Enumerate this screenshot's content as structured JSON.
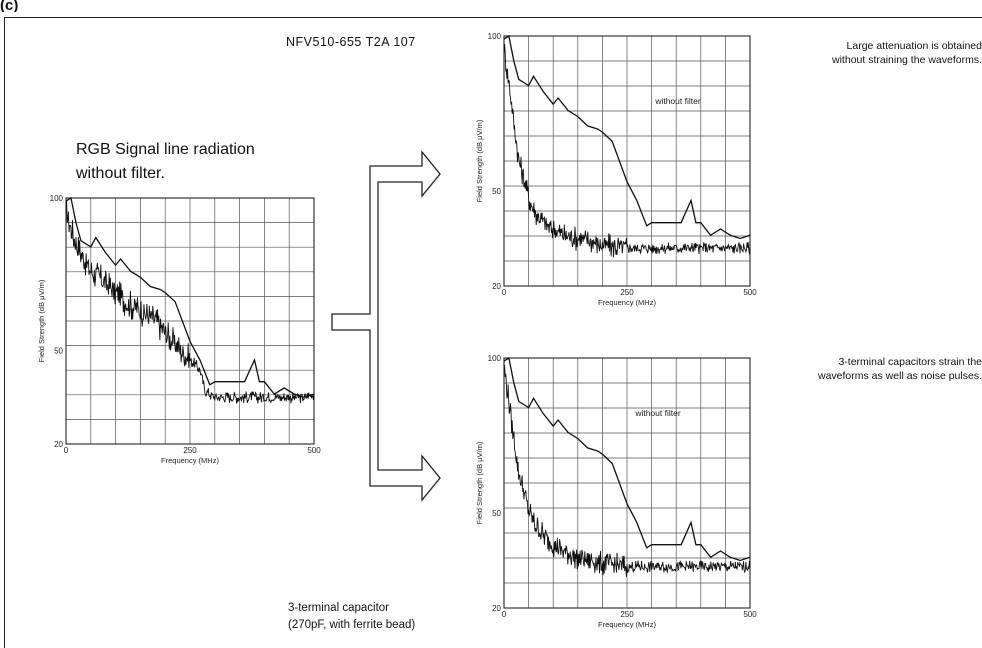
{
  "header": {
    "cut_label": "(c)"
  },
  "part_number": "NFV510-655 T2A 107",
  "rgb_title": [
    "RGB Signal line radiation",
    "without filter."
  ],
  "capacitor_caption": [
    "3-terminal capacitor",
    "(270pF, with ferrite bead)"
  ],
  "note_top": [
    "Large attenuation is obtained",
    "without straining the waveforms."
  ],
  "note_bottom": [
    "3-terminal capacitors strain the",
    "waveforms as well as noise pulses."
  ],
  "colors": {
    "ink": "#111111",
    "grid": "#555555",
    "background": "#ffffff"
  },
  "chart_data": [
    {
      "type": "line",
      "id": "without-filter",
      "xlabel": "Frequency (MHz)",
      "ylabel": "Field Strength (dB μV/m)",
      "xlim": [
        0,
        500
      ],
      "ylim": [
        20,
        100
      ],
      "x_ticks": [
        0,
        250,
        500
      ],
      "y_ticks": [
        20,
        50,
        100
      ],
      "grid": true,
      "series": [
        {
          "role": "envelope",
          "x": [
            0,
            10,
            20,
            30,
            40,
            50,
            60,
            80,
            100,
            110,
            130,
            150,
            170,
            190,
            200,
            220,
            250,
            270,
            290,
            300,
            330,
            360,
            380,
            390,
            400,
            420,
            440,
            460,
            480,
            500
          ],
          "y": [
            99,
            100,
            92,
            86,
            85,
            84,
            87,
            82,
            78,
            80,
            76,
            74,
            71,
            70,
            69,
            66,
            53,
            47,
            39,
            40,
            40,
            40,
            47,
            40,
            40,
            36,
            38,
            36,
            35,
            36
          ]
        },
        {
          "role": "noise",
          "x": [
            0,
            10,
            20,
            30,
            40,
            50,
            60,
            80,
            100,
            120,
            150,
            180,
            200,
            220,
            250,
            270,
            280,
            300,
            330,
            360,
            400,
            440,
            480,
            500
          ],
          "y": [
            96,
            90,
            85,
            82,
            79,
            76,
            75,
            72,
            69,
            66,
            63,
            60,
            56,
            52,
            47,
            44,
            37,
            35,
            35,
            35,
            35,
            35,
            35,
            36
          ]
        }
      ]
    },
    {
      "type": "line",
      "id": "nfv-filter",
      "xlabel": "Frequency (MHz)",
      "ylabel": "Field Strength (dB μV/m)",
      "xlim": [
        0,
        500
      ],
      "ylim": [
        20,
        100
      ],
      "x_ticks": [
        0,
        250,
        500
      ],
      "y_ticks": [
        20,
        50,
        100
      ],
      "grid": true,
      "annotation": "without filter",
      "series": [
        {
          "role": "envelope",
          "x": [
            0,
            10,
            20,
            30,
            40,
            50,
            60,
            80,
            100,
            110,
            130,
            150,
            170,
            190,
            200,
            220,
            250,
            270,
            290,
            300,
            330,
            360,
            380,
            390,
            400,
            420,
            440,
            460,
            480,
            500
          ],
          "y": [
            99,
            100,
            92,
            86,
            85,
            84,
            87,
            82,
            78,
            80,
            76,
            74,
            71,
            70,
            69,
            66,
            53,
            47,
            39,
            40,
            40,
            40,
            47,
            40,
            40,
            36,
            38,
            36,
            35,
            36
          ]
        },
        {
          "role": "noise",
          "x": [
            0,
            10,
            20,
            30,
            40,
            50,
            60,
            80,
            100,
            120,
            150,
            180,
            200,
            250,
            300,
            350,
            400,
            450,
            500
          ],
          "y": [
            96,
            85,
            72,
            60,
            54,
            48,
            44,
            40,
            38,
            36,
            35,
            34,
            33,
            32,
            32,
            32,
            32,
            32,
            32
          ]
        }
      ]
    },
    {
      "type": "line",
      "id": "three-terminal-capacitor",
      "xlabel": "Frequency (MHz)",
      "ylabel": "Field Strength (dB μV/m)",
      "xlim": [
        0,
        500
      ],
      "ylim": [
        20,
        100
      ],
      "x_ticks": [
        0,
        250,
        500
      ],
      "y_ticks": [
        20,
        50,
        100
      ],
      "grid": true,
      "annotation": "without filter",
      "series": [
        {
          "role": "envelope",
          "x": [
            0,
            10,
            20,
            30,
            40,
            50,
            60,
            80,
            100,
            110,
            130,
            150,
            170,
            190,
            200,
            220,
            250,
            270,
            290,
            300,
            330,
            360,
            380,
            390,
            400,
            420,
            440,
            460,
            480,
            500
          ],
          "y": [
            99,
            100,
            92,
            86,
            85,
            84,
            87,
            82,
            78,
            80,
            76,
            74,
            71,
            70,
            69,
            66,
            53,
            47,
            39,
            40,
            40,
            40,
            47,
            40,
            40,
            36,
            38,
            36,
            35,
            36
          ]
        },
        {
          "role": "noise",
          "x": [
            0,
            10,
            20,
            30,
            40,
            50,
            60,
            80,
            100,
            120,
            150,
            180,
            200,
            250,
            300,
            350,
            400,
            450,
            500
          ],
          "y": [
            97,
            86,
            74,
            63,
            57,
            51,
            47,
            43,
            40,
            38,
            36,
            35,
            34,
            33,
            33,
            33,
            33,
            33,
            33
          ]
        }
      ]
    }
  ]
}
